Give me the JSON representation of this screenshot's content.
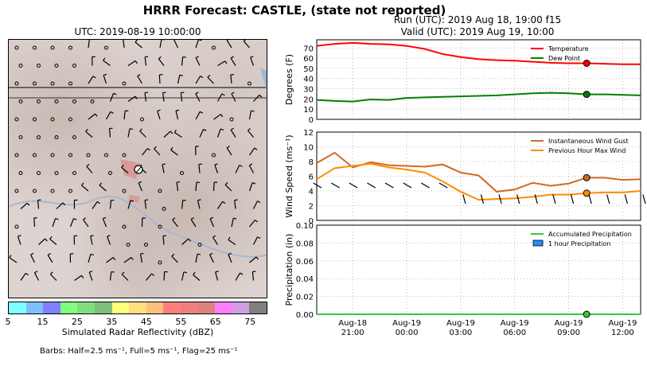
{
  "title": "HRRR Forecast: CASTLE, (state not reported)",
  "run_line": "Run (UTC): 2019 Aug 18, 19:00 f15",
  "valid_line": "Valid (UTC): 2019 Aug 19, 10:00",
  "map": {
    "title": "UTC: 2019-08-19 10:00:00",
    "colorbar_label": "Simulated Radar Reflectivity (dBZ)",
    "colorbar_ticks": [
      "5",
      "15",
      "25",
      "35",
      "45",
      "55",
      "65",
      "75"
    ],
    "colorbar_colors": [
      "#7fffff",
      "#7fbfff",
      "#7f7fff",
      "#7fff7f",
      "#7fdf7f",
      "#7fbf7f",
      "#ffff7f",
      "#ffdf7f",
      "#ffbf7f",
      "#ff7f7f",
      "#ef7f7f",
      "#df7f7f",
      "#ff7fff",
      "#cf9fdf",
      "#7f7f7f"
    ],
    "barb_note": "Barbs: Half=2.5 ms⁻¹, Full=5 ms⁻¹, Flag=25 ms⁻¹"
  },
  "chart_data": [
    {
      "type": "line",
      "ylabel": "Degrees (F)",
      "ylim": [
        0,
        78
      ],
      "yticks": [
        "0",
        "10",
        "20",
        "30",
        "40",
        "50",
        "60",
        "70"
      ],
      "grid": true,
      "legend_placement": "top-right",
      "x": [
        0,
        1,
        2,
        3,
        4,
        5,
        6,
        7,
        8,
        9,
        10,
        11,
        12,
        13,
        14,
        15,
        16,
        17,
        18
      ],
      "series": [
        {
          "name": "Temperature",
          "color": "#ff0000",
          "values": [
            72,
            74,
            75,
            74,
            73.5,
            72,
            69,
            64,
            61,
            59,
            58,
            57.5,
            56.5,
            55.5,
            55,
            55,
            54.5,
            54,
            54
          ]
        },
        {
          "name": "Dew Point",
          "color": "#008000",
          "values": [
            19,
            18,
            17.5,
            19.5,
            19,
            21,
            21.5,
            22,
            22.5,
            23,
            23.5,
            24.5,
            25.5,
            26,
            25.5,
            24.5,
            24.5,
            24,
            23.5
          ]
        }
      ],
      "marker_index": 15
    },
    {
      "type": "line",
      "ylabel": "Wind Speed (ms⁻¹)",
      "ylim": [
        0,
        12
      ],
      "yticks": [
        "0",
        "2",
        "4",
        "6",
        "8",
        "10",
        "12"
      ],
      "grid": true,
      "legend_placement": "top-right",
      "series": [
        {
          "name": "Instantaneous Wind Gust",
          "color": "#d2691e",
          "values": [
            7.8,
            9.2,
            7.2,
            7.9,
            7.5,
            7.4,
            7.3,
            7.6,
            6.5,
            6.1,
            3.9,
            4.2,
            5.1,
            4.7,
            5.0,
            5.8,
            5.8,
            5.5,
            5.6
          ]
        },
        {
          "name": "Previous Hour Max Wind",
          "color": "#ff8c00",
          "values": [
            5.6,
            7.1,
            7.4,
            7.7,
            7.2,
            6.9,
            6.5,
            5.3,
            3.9,
            2.8,
            2.9,
            3.0,
            3.2,
            3.5,
            3.5,
            3.7,
            3.8,
            3.8,
            4.0
          ]
        }
      ],
      "marker_index": 15
    },
    {
      "type": "bar",
      "ylabel": "Precipitation (in)",
      "ylim": [
        0,
        0.1
      ],
      "yticks": [
        "0.00",
        "0.02",
        "0.04",
        "0.06",
        "0.08",
        "0.10"
      ],
      "grid": true,
      "legend_placement": "top-right",
      "series": [
        {
          "name": "Accumulated Precipitation",
          "color": "#32cd32",
          "values": [
            0,
            0,
            0,
            0,
            0,
            0,
            0,
            0,
            0,
            0,
            0,
            0,
            0,
            0,
            0,
            0,
            0,
            0,
            0
          ]
        },
        {
          "name": "1 hour Precipitation",
          "color": "#1e90ff",
          "values": [
            0,
            0,
            0,
            0,
            0,
            0,
            0,
            0,
            0,
            0,
            0,
            0,
            0,
            0,
            0,
            0,
            0,
            0,
            0
          ]
        }
      ],
      "marker_index": 15
    }
  ],
  "x_ticks": [
    {
      "index": 2,
      "date": "Aug-18",
      "time": "21:00"
    },
    {
      "index": 5,
      "date": "Aug-19",
      "time": "00:00"
    },
    {
      "index": 8,
      "date": "Aug-19",
      "time": "03:00"
    },
    {
      "index": 11,
      "date": "Aug-19",
      "time": "06:00"
    },
    {
      "index": 14,
      "date": "Aug-19",
      "time": "09:00"
    },
    {
      "index": 17,
      "date": "Aug-19",
      "time": "12:00"
    }
  ]
}
